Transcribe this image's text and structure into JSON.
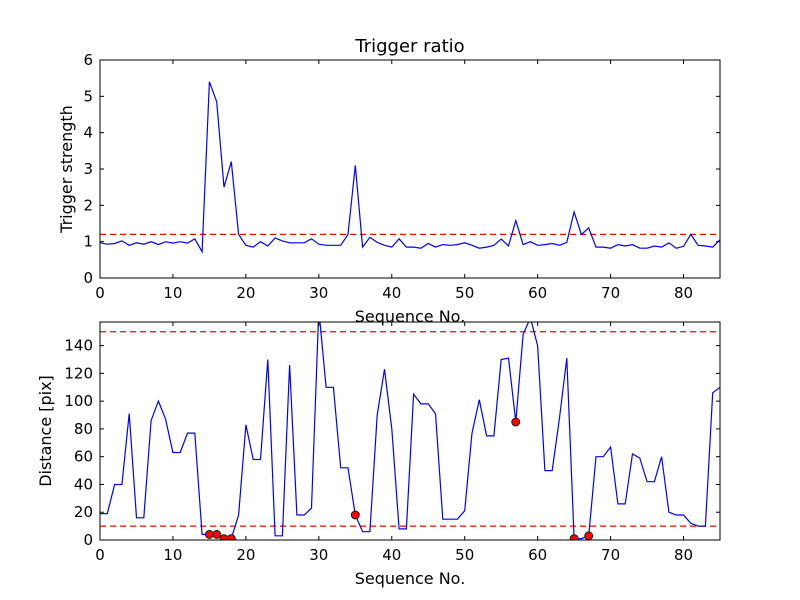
{
  "chart_data": [
    {
      "type": "line",
      "title": "Trigger ratio",
      "xlabel": "Sequence No.",
      "ylabel": "Trigger strength",
      "xlim": [
        0,
        85
      ],
      "ylim": [
        0,
        6
      ],
      "xticks": [
        0,
        10,
        20,
        30,
        40,
        50,
        60,
        70,
        80
      ],
      "yticks": [
        0,
        1,
        2,
        3,
        4,
        5,
        6
      ],
      "grid": false,
      "threshold_lines": [
        1.2
      ],
      "line_color": "#0000ff",
      "threshold_color": "#ff0000",
      "series": [
        {
          "values": [
            0.97,
            0.93,
            0.95,
            1.02,
            0.9,
            0.97,
            0.93,
            1.0,
            0.92,
            1.0,
            0.96,
            1.0,
            0.96,
            1.08,
            0.72,
            5.4,
            4.85,
            2.5,
            3.2,
            1.2,
            0.9,
            0.85,
            1.0,
            0.88,
            1.1,
            1.02,
            0.97,
            0.97,
            0.97,
            1.08,
            0.93,
            0.9,
            0.9,
            0.9,
            1.2,
            3.1,
            0.85,
            1.12,
            0.98,
            0.9,
            0.85,
            1.08,
            0.85,
            0.85,
            0.82,
            0.95,
            0.85,
            0.92,
            0.9,
            0.92,
            0.97,
            0.9,
            0.82,
            0.85,
            0.9,
            1.07,
            0.88,
            1.58,
            0.92,
            1.0,
            0.9,
            0.92,
            0.95,
            0.9,
            0.98,
            1.82,
            1.2,
            1.38,
            0.85,
            0.85,
            0.82,
            0.92,
            0.88,
            0.92,
            0.82,
            0.82,
            0.88,
            0.85,
            0.97,
            0.82,
            0.87,
            1.2,
            0.9,
            0.88,
            0.85,
            1.05
          ]
        }
      ]
    },
    {
      "type": "line",
      "title": "",
      "xlabel": "Sequence No.",
      "ylabel": "Distance [pix]",
      "xlim": [
        0,
        85
      ],
      "ylim": [
        0,
        157
      ],
      "xticks": [
        0,
        10,
        20,
        30,
        40,
        50,
        60,
        70,
        80
      ],
      "yticks": [
        0,
        20,
        40,
        60,
        80,
        100,
        120,
        140
      ],
      "grid": false,
      "threshold_lines": [
        10,
        150
      ],
      "line_color": "#0000ff",
      "threshold_color": "#ff0000",
      "marker_color": "#ff0000",
      "series": [
        {
          "values": [
            19,
            19,
            40,
            40,
            91,
            16,
            16,
            86,
            100,
            87,
            63,
            63,
            77,
            77,
            4,
            4,
            4,
            1,
            1,
            18,
            83,
            58,
            58,
            130,
            3,
            3,
            126,
            18,
            18,
            23,
            166,
            110,
            110,
            52,
            52,
            18,
            6,
            6,
            90,
            123,
            80,
            8,
            8,
            105,
            98,
            98,
            91,
            15,
            15,
            15,
            21,
            77,
            101,
            75,
            75,
            130,
            131,
            85,
            148,
            160,
            140,
            50,
            50,
            88,
            131,
            1,
            1,
            3,
            60,
            60,
            67,
            26,
            26,
            62,
            59,
            42,
            42,
            60,
            20,
            18,
            18,
            12,
            10,
            10,
            106,
            110
          ]
        }
      ],
      "markers": [
        {
          "x": 15,
          "y": 4
        },
        {
          "x": 16,
          "y": 4
        },
        {
          "x": 17,
          "y": 1
        },
        {
          "x": 18,
          "y": 1
        },
        {
          "x": 35,
          "y": 18
        },
        {
          "x": 57,
          "y": 85
        },
        {
          "x": 65,
          "y": 1
        },
        {
          "x": 67,
          "y": 3
        }
      ]
    }
  ]
}
